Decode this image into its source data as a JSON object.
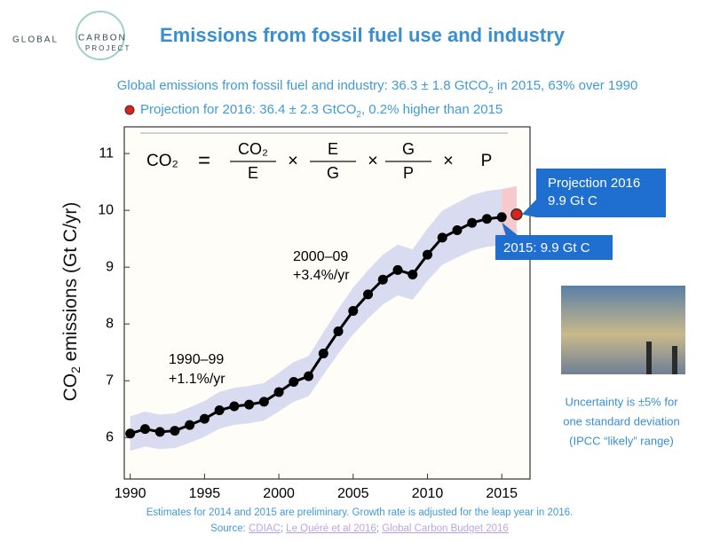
{
  "header": {
    "logo": [
      "GLOBAL",
      "CARBON",
      "PROJECT"
    ],
    "title": "Emissions from fossil fuel use and industry",
    "subtitle": {
      "line1": [
        "Global emissions from fossil fuel and industry: 36.3 ± 1.8 GtCO",
        "2",
        " in 2015, 63% over 1990"
      ],
      "line2": [
        "Projection for 2016: 36.4 ± 2.3 GtCO",
        "2",
        ", 0.2% higher than 2015"
      ]
    }
  },
  "chart_data": {
    "type": "line",
    "y_label": [
      "CO",
      "2",
      " emissions (Gt C/yr)"
    ],
    "x": [
      1990,
      1991,
      1992,
      1993,
      1994,
      1995,
      1996,
      1997,
      1998,
      1999,
      2000,
      2001,
      2002,
      2003,
      2004,
      2005,
      2006,
      2007,
      2008,
      2009,
      2010,
      2011,
      2012,
      2013,
      2014,
      2015
    ],
    "series": [
      {
        "color": "#000000",
        "band_color": "#d9dcf1",
        "values": [
          6.07,
          6.15,
          6.1,
          6.12,
          6.22,
          6.33,
          6.48,
          6.55,
          6.58,
          6.63,
          6.8,
          6.98,
          7.08,
          7.48,
          7.87,
          8.23,
          8.52,
          8.78,
          8.95,
          8.87,
          9.22,
          9.52,
          9.65,
          9.78,
          9.85,
          9.88
        ]
      }
    ],
    "projection": {
      "x": 2016,
      "value": 9.93,
      "color": "#e0201b",
      "band_color": "#f6c9cd"
    },
    "uncertainty_pct": 5,
    "xlim": [
      1989.6,
      2016.9
    ],
    "ylim": [
      5.27,
      11.47
    ],
    "xticks": [
      1990,
      1995,
      2000,
      2005,
      2010,
      2015
    ],
    "yticks": [
      6,
      7,
      8,
      9,
      10,
      11
    ],
    "formula": {
      "lhs": "CO₂",
      "equals": "=",
      "times": "×",
      "fractions": [
        {
          "num": "CO₂",
          "den": "E"
        },
        {
          "num": "E",
          "den": "G"
        },
        {
          "num": "G",
          "den": "P"
        }
      ],
      "last": "P"
    },
    "annotations": {
      "period_2000s": [
        "2000–09",
        "+3.4%/yr"
      ],
      "period_1990s": [
        "1990–99",
        "+1.1%/yr"
      ],
      "projection_box": [
        "Projection 2016",
        "9.9 Gt C"
      ],
      "box_2015": "2015: 9.9 Gt C"
    },
    "uncertainty_note": [
      "Uncertainty is ±5% for",
      "one standard deviation",
      "(IPCC “likely” range)"
    ]
  },
  "footer": {
    "note": "Estimates for 2014 and 2015 are preliminary. Growth rate is adjusted for the leap year in 2016.",
    "source": [
      "Source: ",
      "CDIAC",
      "; ",
      "Le Quéré et al 2016",
      "; ",
      "Global Carbon Budget 2016"
    ]
  }
}
